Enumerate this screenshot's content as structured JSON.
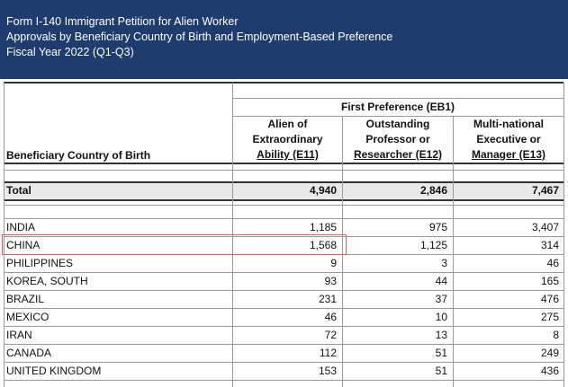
{
  "header": {
    "line1": "Form I-140 Immigrant Petition for Alien Worker",
    "line2": "Approvals by Beneficiary Country of Birth and Employment-Based Preference",
    "line3": "Fiscal Year 2022 (Q1-Q3)"
  },
  "table": {
    "group_header": "First Preference (EB1)",
    "row_header": "Beneficiary Country of Birth",
    "columns": [
      {
        "l1": "Alien of",
        "l2": "Extraordinary",
        "l3": "Ability (E11)"
      },
      {
        "l1": "Outstanding",
        "l2": "Professor or",
        "l3": "Researcher (E12)"
      },
      {
        "l1": "Multi-national",
        "l2": "Executive or",
        "l3": "Manager (E13)"
      }
    ],
    "total": {
      "label": "Total",
      "values": [
        "4,940",
        "2,846",
        "7,467"
      ]
    },
    "rows": [
      {
        "country": "INDIA",
        "values": [
          "1,185",
          "975",
          "3,407"
        ]
      },
      {
        "country": "CHINA",
        "values": [
          "1,568",
          "1,125",
          "314"
        ]
      },
      {
        "country": "PHILIPPINES",
        "values": [
          "9",
          "3",
          "46"
        ]
      },
      {
        "country": "KOREA, SOUTH",
        "values": [
          "93",
          "44",
          "165"
        ]
      },
      {
        "country": "BRAZIL",
        "values": [
          "231",
          "37",
          "476"
        ]
      },
      {
        "country": "MEXICO",
        "values": [
          "46",
          "10",
          "275"
        ]
      },
      {
        "country": "IRAN",
        "values": [
          "72",
          "13",
          "8"
        ]
      },
      {
        "country": "CANADA",
        "values": [
          "112",
          "51",
          "249"
        ]
      },
      {
        "country": "UNITED KINGDOM",
        "values": [
          "153",
          "51",
          "436"
        ]
      }
    ],
    "highlight_color": "#e25b5b"
  }
}
